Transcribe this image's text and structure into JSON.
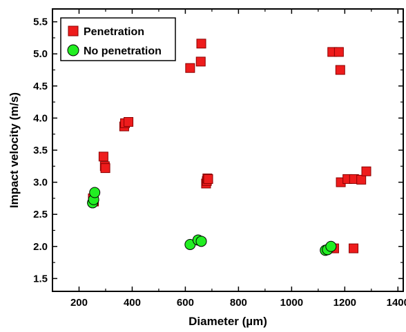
{
  "chart_data": {
    "type": "scatter",
    "title": "",
    "xlabel": "Diameter (µm)",
    "ylabel": "Impact velocity (m/s)",
    "xlim": [
      100,
      1420
    ],
    "ylim": [
      1.3,
      5.7
    ],
    "xticks": [
      200,
      400,
      600,
      800,
      1000,
      1200,
      1400
    ],
    "yticks": [
      1.5,
      2.0,
      2.5,
      3.0,
      3.5,
      4.0,
      4.5,
      5.0,
      5.5
    ],
    "xtick_labels": [
      "200",
      "400",
      "600",
      "800",
      "1000",
      "1200",
      "1400"
    ],
    "ytick_labels": [
      "1.5",
      "2.0",
      "2.5",
      "3.0",
      "3.5",
      "4.0",
      "4.5",
      "5.0",
      "5.5"
    ],
    "grid": false,
    "legend_position": "top-left",
    "series": [
      {
        "name": "Penetration",
        "marker": "square",
        "color": "#ee1c1c",
        "points": [
          {
            "x": 252,
            "y": 2.75
          },
          {
            "x": 256,
            "y": 2.7
          },
          {
            "x": 292,
            "y": 3.4
          },
          {
            "x": 297,
            "y": 3.25
          },
          {
            "x": 299,
            "y": 3.22
          },
          {
            "x": 370,
            "y": 3.87
          },
          {
            "x": 373,
            "y": 3.92
          },
          {
            "x": 386,
            "y": 3.94
          },
          {
            "x": 618,
            "y": 4.78
          },
          {
            "x": 658,
            "y": 4.88
          },
          {
            "x": 660,
            "y": 5.16
          },
          {
            "x": 678,
            "y": 2.98
          },
          {
            "x": 681,
            "y": 3.02
          },
          {
            "x": 683,
            "y": 3.06
          },
          {
            "x": 686,
            "y": 3.05
          },
          {
            "x": 1153,
            "y": 5.03
          },
          {
            "x": 1178,
            "y": 5.03
          },
          {
            "x": 1183,
            "y": 4.75
          },
          {
            "x": 1160,
            "y": 1.97
          },
          {
            "x": 1233,
            "y": 1.97
          },
          {
            "x": 1185,
            "y": 3.0
          },
          {
            "x": 1210,
            "y": 3.05
          },
          {
            "x": 1235,
            "y": 3.05
          },
          {
            "x": 1262,
            "y": 3.04
          },
          {
            "x": 1281,
            "y": 3.17
          }
        ]
      },
      {
        "name": "No penetration",
        "marker": "circle",
        "color": "#22ee22",
        "points": [
          {
            "x": 251,
            "y": 2.68
          },
          {
            "x": 255,
            "y": 2.73
          },
          {
            "x": 259,
            "y": 2.84
          },
          {
            "x": 618,
            "y": 2.03
          },
          {
            "x": 648,
            "y": 2.1
          },
          {
            "x": 660,
            "y": 2.08
          },
          {
            "x": 1127,
            "y": 1.94
          },
          {
            "x": 1135,
            "y": 1.95
          },
          {
            "x": 1148,
            "y": 2.0
          }
        ]
      }
    ]
  }
}
